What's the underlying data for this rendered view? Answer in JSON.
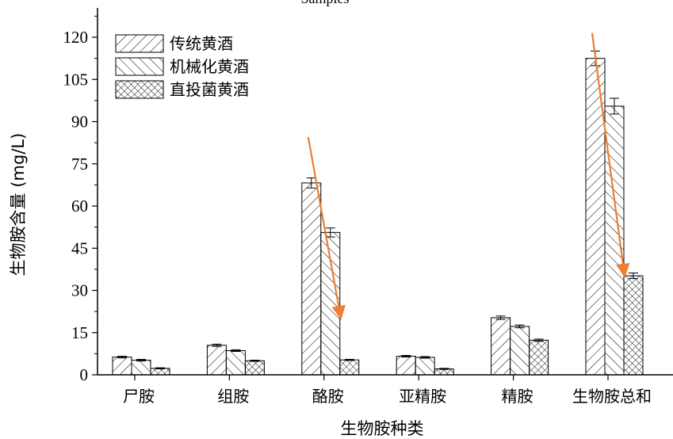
{
  "chart_data": {
    "type": "bar",
    "title": "Samples",
    "xlabel": "生物胺种类",
    "ylabel": "生物胺含量 (mg/L)",
    "ylim": [
      0,
      126
    ],
    "yticks": [
      0,
      15,
      30,
      45,
      60,
      75,
      90,
      105,
      120
    ],
    "categories": [
      "尸胺",
      "组胺",
      "酪胺",
      "亚精胺",
      "精胺",
      "生物胺总和"
    ],
    "series": [
      {
        "name": "传统黄酒",
        "pattern": "forward-diagonal",
        "values": [
          6.3,
          10.5,
          68.2,
          6.6,
          20.3,
          112.5
        ],
        "errors": [
          0.3,
          0.4,
          1.8,
          0.3,
          0.6,
          2.6
        ]
      },
      {
        "name": "机械化黄酒",
        "pattern": "back-diagonal",
        "values": [
          5.2,
          8.6,
          50.6,
          6.2,
          17.2,
          95.5
        ],
        "errors": [
          0.3,
          0.3,
          1.6,
          0.3,
          0.5,
          2.8
        ]
      },
      {
        "name": "直投菌黄酒",
        "pattern": "crosshatch",
        "values": [
          2.3,
          5.0,
          5.3,
          2.1,
          12.3,
          35.2
        ],
        "errors": [
          0.2,
          0.2,
          0.2,
          0.2,
          0.4,
          1.0
        ]
      }
    ],
    "grid": false,
    "legend_position": "top-left",
    "annotations": [
      {
        "type": "arrow",
        "color": "#ED7D31",
        "x_category": "酪胺",
        "y_from": 84.5,
        "y_to": 22
      },
      {
        "type": "arrow",
        "color": "#ED7D31",
        "x_category": "生物胺总和",
        "y_from": 121.5,
        "y_to": 37
      }
    ],
    "colors": {
      "bar_fill": "#ffffff",
      "bar_stroke": "#000000",
      "arrow": "#ED7D31"
    }
  }
}
